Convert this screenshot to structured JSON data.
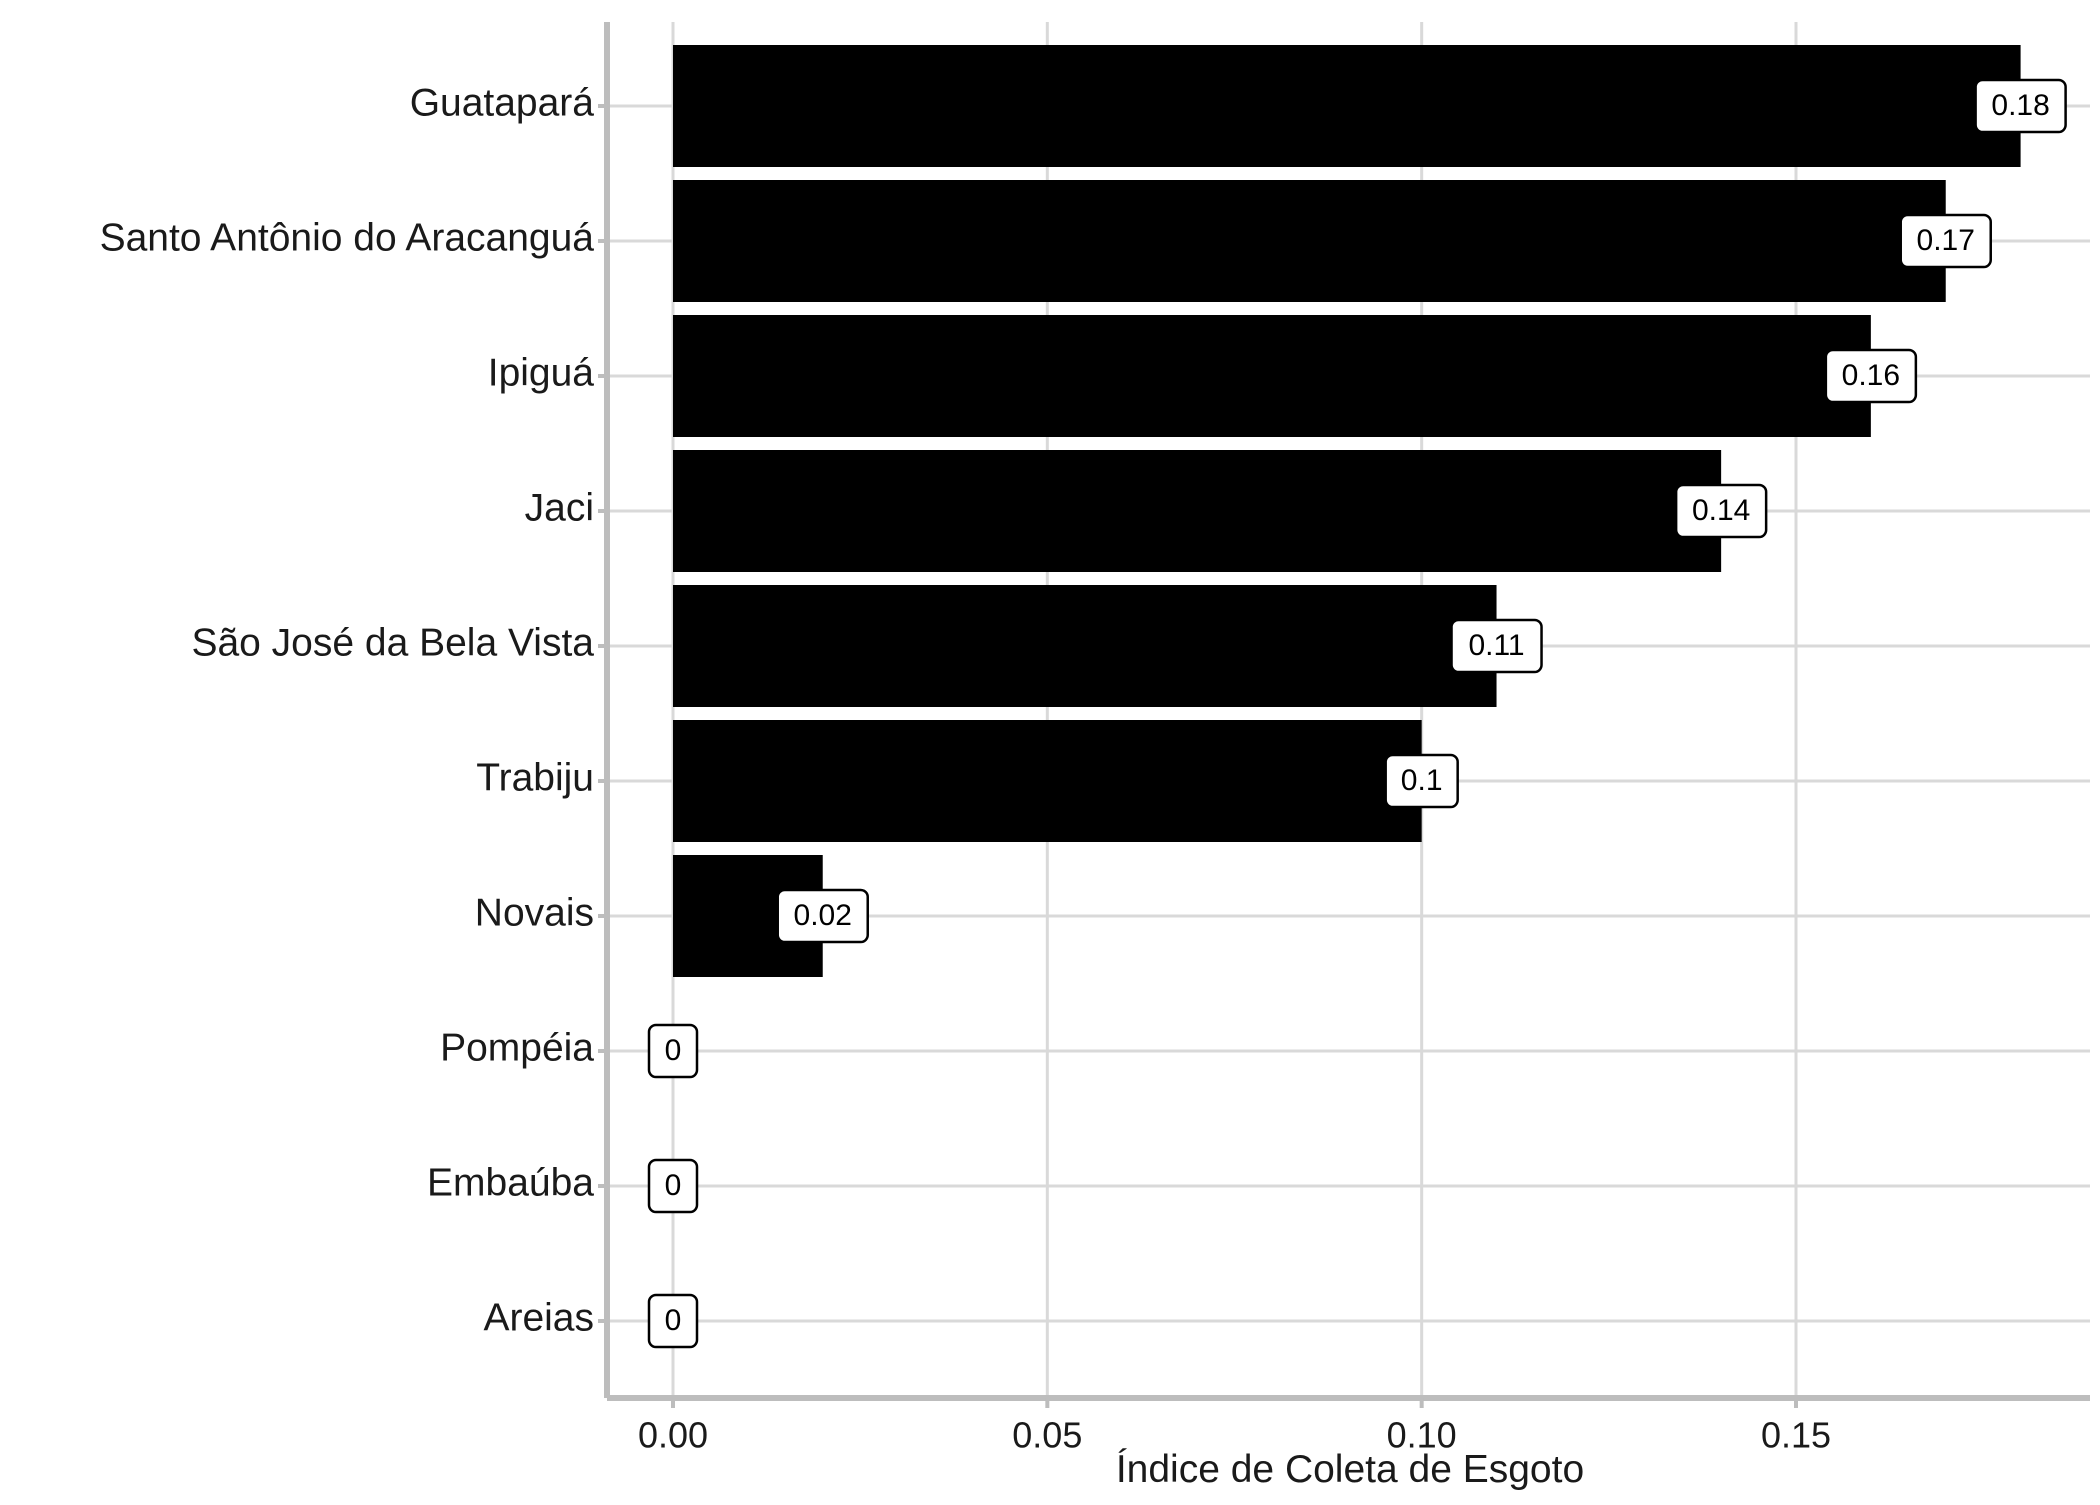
{
  "chart_data": {
    "type": "bar",
    "orientation": "horizontal",
    "categories": [
      "Guatapará",
      "Santo Antônio do Aracanguá",
      "Ipiguá",
      "Jaci",
      "São José da Bela Vista",
      "Trabiju",
      "Novais",
      "Pompéia",
      "Embaúba",
      "Areias"
    ],
    "values": [
      0.18,
      0.17,
      0.16,
      0.14,
      0.11,
      0.1,
      0.02,
      0,
      0,
      0
    ],
    "data_labels": [
      "0.18",
      "0.17",
      "0.16",
      "0.14",
      "0.11",
      "0.1",
      "0.02",
      "0",
      "0",
      "0"
    ],
    "xlim": [
      -0.009,
      0.189
    ],
    "xticks": [
      0,
      0.05,
      0.1,
      0.15
    ],
    "xtick_labels": [
      "0.00",
      "0.05",
      "0.10",
      "0.15"
    ],
    "xlabel": "Índice de Coleta de Esgoto",
    "ylabel": "",
    "title": "",
    "grid": true,
    "legend": "none",
    "colors": {
      "bar": "#000000",
      "grid": "#d9d9d9",
      "axis": "#bdbdbd",
      "label_box_fill": "#ffffff",
      "label_box_stroke": "#000000"
    }
  }
}
